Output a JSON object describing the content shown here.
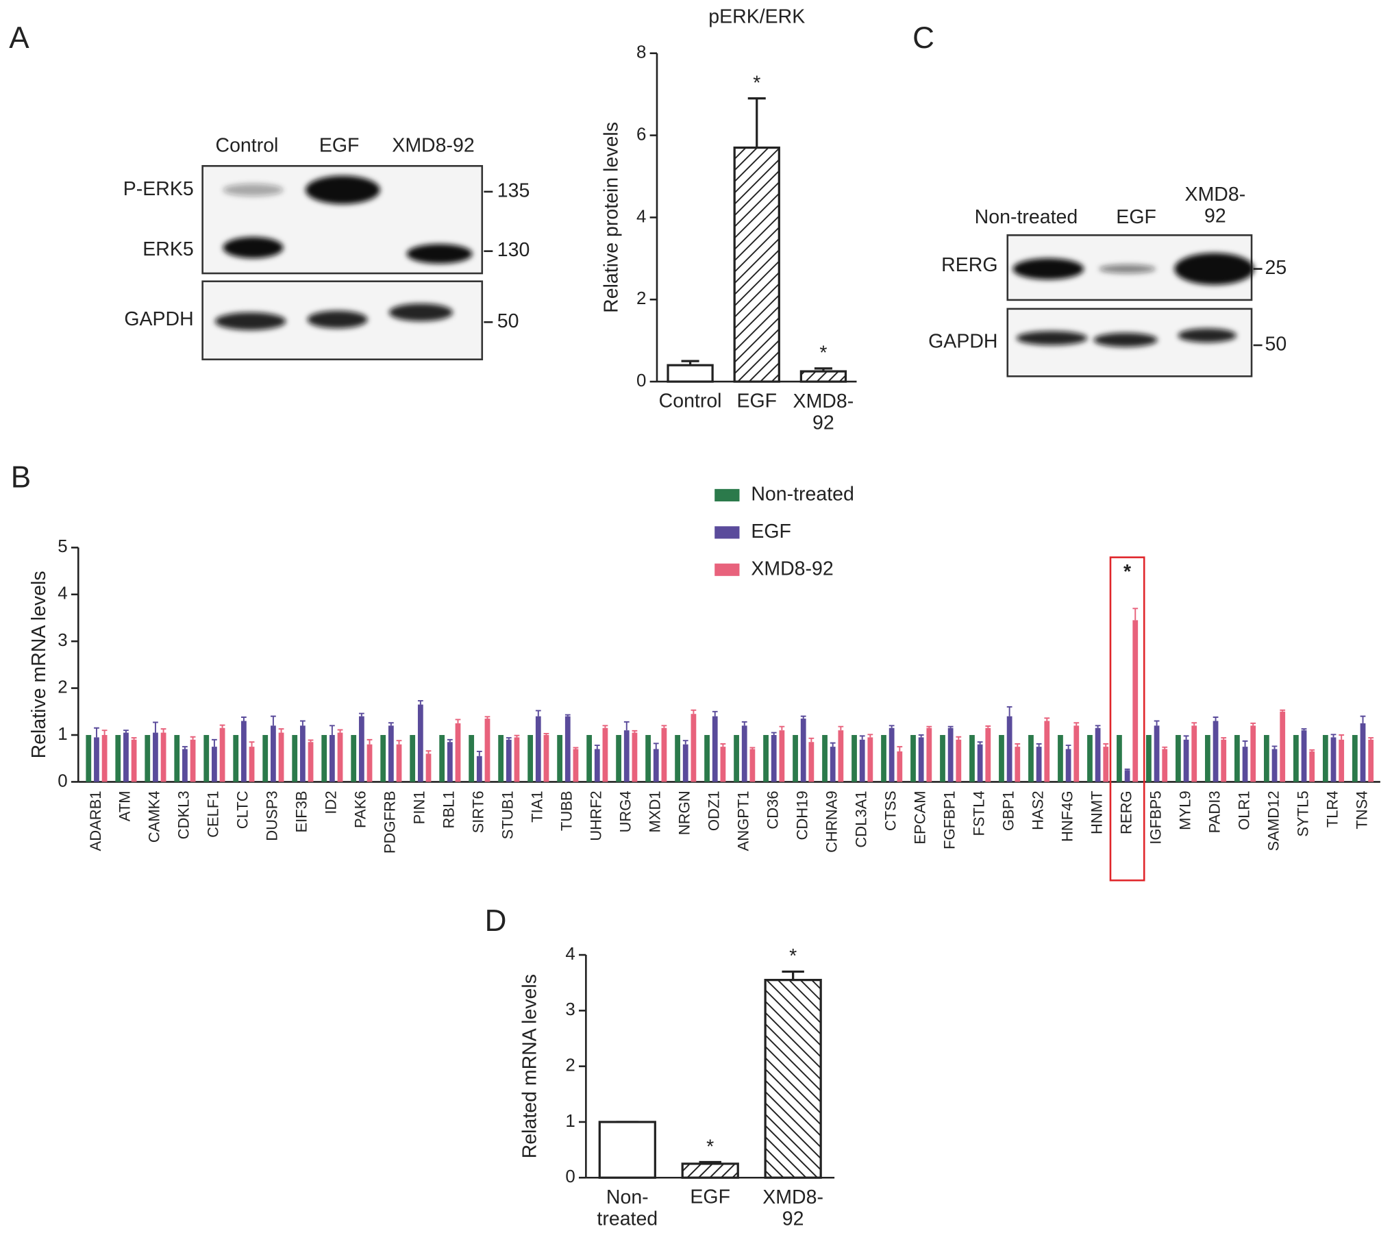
{
  "panel_labels": [
    "A",
    "B",
    "C",
    "D"
  ],
  "blot_a": {
    "lanes": [
      "Control",
      "EGF",
      "XMD8-92"
    ],
    "rows": [
      "P-ERK5",
      "ERK5",
      "GAPDH"
    ],
    "markers": [
      "135",
      "130",
      "50"
    ]
  },
  "blot_c": {
    "lanes": [
      "Non-treated",
      "EGF",
      "XMD8-\n92"
    ],
    "rows": [
      "RERG",
      "GAPDH"
    ],
    "markers": [
      "25",
      "50"
    ]
  },
  "chart_data": [
    {
      "type": "bar",
      "title": "pERK/ERK",
      "ylabel": "Relative protein levels",
      "categories": [
        "Control",
        "EGF",
        "XMD8-\n92"
      ],
      "values": [
        0.4,
        5.7,
        0.25
      ],
      "errors": [
        0.1,
        1.2,
        0.07
      ],
      "hatch": [
        null,
        "/",
        "/"
      ],
      "significance": [
        null,
        "*",
        "*"
      ],
      "ylim": [
        0,
        8
      ],
      "yticks": [
        0,
        2,
        4,
        6,
        8
      ]
    },
    {
      "type": "grouped_bar",
      "ylabel": "Relative mRNA levels",
      "categories": [
        "ADARB1",
        "ATM",
        "CAMK4",
        "CDKL3",
        "CELF1",
        "CLTC",
        "DUSP3",
        "EIF3B",
        "ID2",
        "PAK6",
        "PDGFRB",
        "PIN1",
        "RBL1",
        "SIRT6",
        "STUB1",
        "TIA1",
        "TUBB",
        "UHRF2",
        "URG4",
        "MXD1",
        "NRGN",
        "ODZ1",
        "ANGPT1",
        "CD36",
        "CDH19",
        "CHRNA9",
        "CDL3A1",
        "CTSS",
        "EPCAM",
        "FGFBP1",
        "FSTL4",
        "GBP1",
        "HAS2",
        "HNF4G",
        "HNMT",
        "RERG",
        "IGFBP5",
        "MYL9",
        "PADI3",
        "OLR1",
        "SAMD12",
        "SYTL5",
        "TLR4",
        "TNS4"
      ],
      "series": [
        {
          "name": "Non-treated",
          "color": "#2b7a4b",
          "values": [
            1,
            1,
            1,
            1,
            1,
            1,
            1,
            1,
            1,
            1,
            1,
            1,
            1,
            1,
            1,
            1,
            1,
            1,
            1,
            1,
            1,
            1,
            1,
            1,
            1,
            1,
            1,
            1,
            1,
            1,
            1,
            1,
            1,
            1,
            1,
            1,
            1,
            1,
            1,
            1,
            1,
            1,
            1,
            1
          ]
        },
        {
          "name": "EGF",
          "color": "#5a4b9b",
          "values": [
            0.95,
            1.05,
            1.05,
            0.7,
            0.75,
            1.3,
            1.2,
            1.2,
            1.0,
            1.4,
            1.2,
            1.65,
            0.85,
            0.55,
            0.9,
            1.4,
            1.4,
            0.7,
            1.1,
            0.7,
            0.8,
            1.4,
            1.2,
            1.0,
            1.35,
            0.75,
            0.9,
            1.15,
            0.95,
            1.15,
            0.8,
            1.4,
            0.75,
            0.7,
            1.15,
            0.25,
            1.2,
            0.9,
            1.3,
            0.75,
            0.7,
            1.1,
            0.95,
            1.25
          ],
          "errors": [
            0.2,
            0.05,
            0.22,
            0.05,
            0.15,
            0.08,
            0.2,
            0.1,
            0.2,
            0.06,
            0.06,
            0.08,
            0.05,
            0.1,
            0.04,
            0.12,
            0.03,
            0.08,
            0.18,
            0.12,
            0.08,
            0.1,
            0.08,
            0.05,
            0.05,
            0.08,
            0.08,
            0.05,
            0.05,
            0.03,
            0.05,
            0.2,
            0.06,
            0.08,
            0.05,
            0.02,
            0.1,
            0.08,
            0.08,
            0.12,
            0.06,
            0.03,
            0.06,
            0.15
          ]
        },
        {
          "name": "XMD8-92",
          "color": "#e8627c",
          "values": [
            1.0,
            0.9,
            1.05,
            0.9,
            1.15,
            0.75,
            1.05,
            0.85,
            1.05,
            0.8,
            0.8,
            0.6,
            1.25,
            1.35,
            0.95,
            1.0,
            0.7,
            1.15,
            1.05,
            1.15,
            1.45,
            0.75,
            0.7,
            1.1,
            0.85,
            1.1,
            0.95,
            0.65,
            1.15,
            0.9,
            1.15,
            0.75,
            1.3,
            1.2,
            0.75,
            3.45,
            0.7,
            1.2,
            0.9,
            1.2,
            1.5,
            0.65,
            0.9,
            0.9
          ],
          "errors": [
            0.1,
            0.04,
            0.08,
            0.06,
            0.06,
            0.1,
            0.08,
            0.04,
            0.06,
            0.1,
            0.08,
            0.06,
            0.08,
            0.04,
            0.04,
            0.03,
            0.03,
            0.05,
            0.04,
            0.05,
            0.08,
            0.06,
            0.03,
            0.08,
            0.08,
            0.08,
            0.06,
            0.1,
            0.03,
            0.06,
            0.04,
            0.06,
            0.06,
            0.06,
            0.06,
            0.25,
            0.04,
            0.06,
            0.04,
            0.05,
            0.03,
            0.03,
            0.1,
            0.04
          ]
        }
      ],
      "annotations": [
        {
          "text": "*",
          "category": "RERG"
        }
      ],
      "highlight": "RERG",
      "legend": "upper center",
      "ylim": [
        0,
        5
      ],
      "yticks": [
        0,
        1,
        2,
        3,
        4,
        5
      ]
    },
    {
      "type": "bar",
      "ylabel": "Related mRNA levels",
      "categories": [
        "Non-\ntreated",
        "EGF",
        "XMD8-\n92"
      ],
      "values": [
        1.0,
        0.25,
        3.55
      ],
      "errors": [
        0,
        0.03,
        0.15
      ],
      "hatch": [
        null,
        "/",
        "\\"
      ],
      "significance": [
        null,
        "*",
        "*"
      ],
      "ylim": [
        0,
        4
      ],
      "yticks": [
        0,
        1,
        2,
        3,
        4
      ]
    }
  ]
}
